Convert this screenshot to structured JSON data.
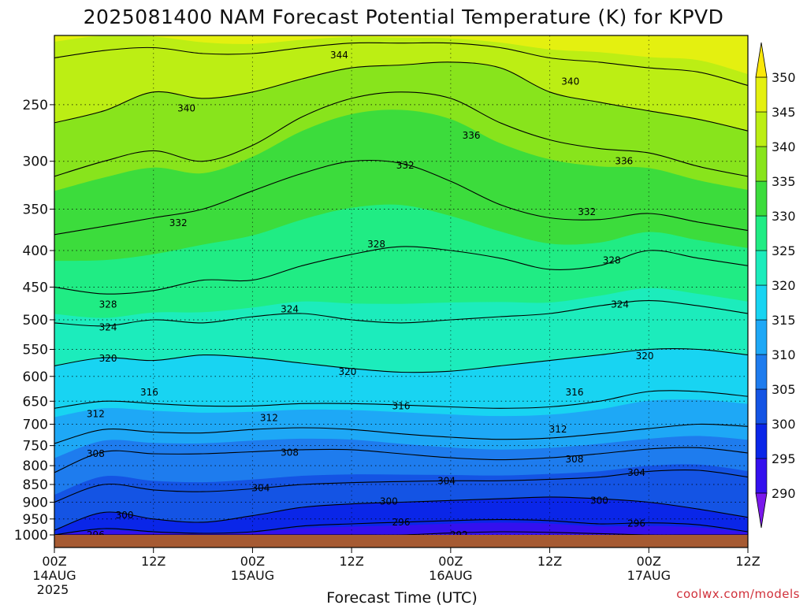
{
  "chart_data": {
    "type": "heatmap",
    "title": "2025081400 NAM Forecast Potential Temperature (K) for KPVD",
    "xlabel": "Forecast Time (UTC)",
    "ylabel": "",
    "y_scale": "log-pressure",
    "ylim": [
      1000,
      200
    ],
    "xlim_hours": [
      0,
      84
    ],
    "y_ticks": [
      250,
      300,
      350,
      400,
      450,
      500,
      550,
      600,
      650,
      700,
      750,
      800,
      850,
      900,
      950,
      1000
    ],
    "x_ticks": [
      {
        "hour": 0,
        "label": "00Z",
        "day": "14AUG",
        "year": "2025"
      },
      {
        "hour": 12,
        "label": "12Z",
        "day": "",
        "year": ""
      },
      {
        "hour": 24,
        "label": "00Z",
        "day": "15AUG",
        "year": ""
      },
      {
        "hour": 36,
        "label": "12Z",
        "day": "",
        "year": ""
      },
      {
        "hour": 48,
        "label": "00Z",
        "day": "16AUG",
        "year": ""
      },
      {
        "hour": 60,
        "label": "12Z",
        "day": "",
        "year": ""
      },
      {
        "hour": 72,
        "label": "00Z",
        "day": "17AUG",
        "year": ""
      },
      {
        "hour": 84,
        "label": "12Z",
        "day": "",
        "year": ""
      }
    ],
    "colorbar": {
      "ticks": [
        290,
        295,
        300,
        305,
        310,
        315,
        320,
        325,
        330,
        335,
        340,
        345,
        350
      ],
      "colors": [
        "#7a18ec",
        "#3410ee",
        "#0a26e8",
        "#1454e4",
        "#1e7cee",
        "#1ea8f6",
        "#18d4f2",
        "#1cecbc",
        "#20ec84",
        "#3cdc3c",
        "#88e41c",
        "#bcee14",
        "#e4f010",
        "#fbe80a"
      ]
    },
    "sample_hours": [
      0,
      6,
      12,
      18,
      24,
      30,
      36,
      42,
      48,
      54,
      60,
      66,
      72,
      78,
      84
    ],
    "isentropes": [
      {
        "theta": 292,
        "p": [
          1000,
          1000,
          1000,
          1000,
          1000,
          1000,
          1000,
          1000,
          994,
          990,
          992,
          996,
          1000,
          1000,
          1000
        ]
      },
      {
        "theta": 296,
        "p": [
          1000,
          980,
          990,
          995,
          990,
          972,
          965,
          960,
          955,
          952,
          955,
          965,
          962,
          968,
          990
        ]
      },
      {
        "theta": 300,
        "p": [
          985,
          930,
          950,
          960,
          940,
          915,
          905,
          900,
          895,
          890,
          885,
          890,
          900,
          920,
          945
        ]
      },
      {
        "theta": 304,
        "p": [
          900,
          850,
          865,
          870,
          862,
          850,
          845,
          842,
          840,
          840,
          836,
          830,
          815,
          812,
          830
        ]
      },
      {
        "theta": 308,
        "p": [
          818,
          765,
          770,
          770,
          765,
          760,
          760,
          770,
          780,
          785,
          780,
          770,
          758,
          755,
          768
        ]
      },
      {
        "theta": 312,
        "p": [
          745,
          712,
          718,
          720,
          712,
          708,
          712,
          722,
          730,
          735,
          732,
          722,
          710,
          700,
          705
        ]
      },
      {
        "theta": 316,
        "p": [
          665,
          650,
          655,
          660,
          660,
          655,
          655,
          658,
          662,
          665,
          662,
          650,
          630,
          630,
          640
        ]
      },
      {
        "theta": 320,
        "p": [
          580,
          565,
          570,
          560,
          565,
          575,
          585,
          592,
          590,
          580,
          570,
          560,
          550,
          550,
          560
        ]
      },
      {
        "theta": 324,
        "p": [
          505,
          510,
          500,
          505,
          495,
          490,
          500,
          505,
          500,
          495,
          490,
          478,
          470,
          478,
          490
        ]
      },
      {
        "theta": 328,
        "p": [
          450,
          460,
          455,
          440,
          440,
          420,
          405,
          395,
          400,
          410,
          425,
          420,
          400,
          410,
          420
        ]
      },
      {
        "theta": 332,
        "p": [
          380,
          370,
          360,
          350,
          330,
          312,
          300,
          302,
          320,
          345,
          360,
          362,
          355,
          365,
          375
        ]
      },
      {
        "theta": 336,
        "p": [
          315,
          300,
          290,
          300,
          285,
          260,
          245,
          240,
          245,
          265,
          280,
          288,
          292,
          305,
          315
        ]
      },
      {
        "theta": 340,
        "p": [
          265,
          255,
          240,
          245,
          240,
          230,
          222,
          220,
          218,
          222,
          240,
          248,
          255,
          262,
          272
        ]
      },
      {
        "theta": 344,
        "p": [
          215,
          210,
          208,
          212,
          212,
          208,
          205,
          205,
          205,
          208,
          215,
          218,
          222,
          225,
          235
        ]
      }
    ],
    "contour_labels": [
      {
        "text": "344",
        "hour": 34.5,
        "p": 213
      },
      {
        "text": "340",
        "hour": 16,
        "p": 253
      },
      {
        "text": "340",
        "hour": 62.5,
        "p": 232
      },
      {
        "text": "336",
        "hour": 50.5,
        "p": 276
      },
      {
        "text": "336",
        "hour": 69,
        "p": 300
      },
      {
        "text": "332",
        "hour": 42.5,
        "p": 304
      },
      {
        "text": "332",
        "hour": 15,
        "p": 366
      },
      {
        "text": "332",
        "hour": 64.5,
        "p": 353
      },
      {
        "text": "328",
        "hour": 39,
        "p": 392
      },
      {
        "text": "328",
        "hour": 67.5,
        "p": 413
      },
      {
        "text": "328",
        "hour": 6.5,
        "p": 476
      },
      {
        "text": "324",
        "hour": 28.5,
        "p": 483
      },
      {
        "text": "324",
        "hour": 68.5,
        "p": 476
      },
      {
        "text": "324",
        "hour": 6.5,
        "p": 512
      },
      {
        "text": "320",
        "hour": 6.5,
        "p": 566
      },
      {
        "text": "320",
        "hour": 35.5,
        "p": 591
      },
      {
        "text": "320",
        "hour": 71.5,
        "p": 562
      },
      {
        "text": "316",
        "hour": 11.5,
        "p": 632
      },
      {
        "text": "316",
        "hour": 42,
        "p": 660
      },
      {
        "text": "316",
        "hour": 63,
        "p": 632
      },
      {
        "text": "312",
        "hour": 5,
        "p": 677
      },
      {
        "text": "312",
        "hour": 26,
        "p": 686
      },
      {
        "text": "312",
        "hour": 61,
        "p": 712
      },
      {
        "text": "308",
        "hour": 5,
        "p": 770
      },
      {
        "text": "308",
        "hour": 28.5,
        "p": 767
      },
      {
        "text": "308",
        "hour": 63,
        "p": 784
      },
      {
        "text": "304",
        "hour": 25,
        "p": 860
      },
      {
        "text": "304",
        "hour": 47.5,
        "p": 840
      },
      {
        "text": "304",
        "hour": 70.5,
        "p": 818
      },
      {
        "text": "300",
        "hour": 8.5,
        "p": 938
      },
      {
        "text": "300",
        "hour": 40.5,
        "p": 898
      },
      {
        "text": "300",
        "hour": 66,
        "p": 896
      },
      {
        "text": "296",
        "hour": 5,
        "p": 1000
      },
      {
        "text": "296",
        "hour": 42,
        "p": 960
      },
      {
        "text": "296",
        "hour": 70.5,
        "p": 964
      },
      {
        "text": "292",
        "hour": 49,
        "p": 1000
      }
    ]
  },
  "credit": "coolwx.com/models"
}
